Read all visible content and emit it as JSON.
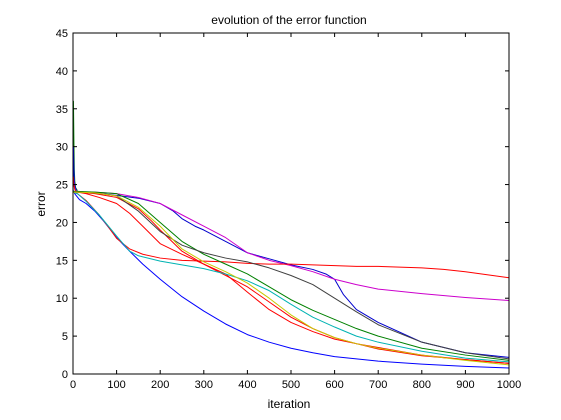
{
  "chart_data": {
    "type": "line",
    "title": "evolution of the error function",
    "xlabel": "iteration",
    "ylabel": "error",
    "xlim": [
      0,
      1000
    ],
    "ylim": [
      0,
      45
    ],
    "xticks": [
      0,
      100,
      200,
      300,
      400,
      500,
      600,
      700,
      800,
      900,
      1000
    ],
    "yticks": [
      0,
      5,
      10,
      15,
      20,
      25,
      30,
      35,
      40,
      45
    ],
    "grid": false,
    "legend": "none",
    "series": [
      {
        "color": "#0000ff",
        "x": [
          0,
          2,
          4,
          8,
          15,
          30,
          50,
          70,
          100,
          130,
          160,
          200,
          250,
          300,
          350,
          400,
          450,
          500,
          550,
          600,
          650,
          700,
          800,
          900,
          1000
        ],
        "y": [
          24.3,
          24,
          23.8,
          23.5,
          23,
          22.5,
          21.5,
          20.2,
          18,
          16.2,
          14.5,
          12.5,
          10.2,
          8.3,
          6.6,
          5.2,
          4.2,
          3.4,
          2.8,
          2.3,
          2.0,
          1.7,
          1.3,
          1.0,
          0.8
        ]
      },
      {
        "color": "#0000cc",
        "x": [
          0,
          2,
          5,
          10,
          30,
          80,
          150,
          200,
          230,
          250,
          280,
          300,
          350,
          400,
          450,
          500,
          550,
          580,
          600,
          620,
          650,
          700,
          800,
          900,
          1000
        ],
        "y": [
          24,
          24.1,
          24.1,
          24.1,
          24,
          23.7,
          23.2,
          22.5,
          21.5,
          20.5,
          19.5,
          19,
          17.5,
          16,
          15.2,
          14.4,
          13.8,
          13.2,
          12.5,
          10.5,
          8.5,
          6.8,
          4.2,
          2.8,
          2.2
        ]
      },
      {
        "color": "#cc00cc",
        "x": [
          0,
          2,
          5,
          10,
          50,
          100,
          150,
          200,
          250,
          300,
          350,
          400,
          450,
          500,
          550,
          600,
          650,
          700,
          800,
          900,
          1000
        ],
        "y": [
          24,
          24.1,
          24,
          24,
          24,
          23.8,
          23.3,
          22.5,
          21,
          19.5,
          18,
          16,
          15,
          14.3,
          13.5,
          12.5,
          11.8,
          11.2,
          10.6,
          10.1,
          9.7
        ]
      },
      {
        "color": "#ff0000",
        "x": [
          0,
          2,
          5,
          10,
          30,
          60,
          80,
          100,
          130,
          160,
          200,
          250,
          300,
          350,
          400,
          450,
          500,
          550,
          600,
          650,
          700,
          800,
          850,
          900,
          950,
          1000
        ],
        "y": [
          24,
          24,
          23.9,
          23.8,
          22.9,
          21,
          19.5,
          17.9,
          16.5,
          15.8,
          15.3,
          15.0,
          14.9,
          14.8,
          14.6,
          14.5,
          14.5,
          14.4,
          14.3,
          14.2,
          14.2,
          14.0,
          13.8,
          13.5,
          13.1,
          12.7
        ]
      },
      {
        "color": "#ff0000",
        "x": [
          0,
          2,
          5,
          10,
          30,
          60,
          100,
          130,
          160,
          200,
          250,
          300,
          350,
          400,
          450,
          500,
          550,
          600,
          650,
          700,
          800,
          900,
          1000
        ],
        "y": [
          24,
          24,
          24,
          24,
          23.8,
          23.3,
          22.5,
          21.2,
          19.5,
          17.2,
          15.8,
          14.5,
          13.2,
          10.8,
          8.5,
          6.8,
          5.6,
          4.6,
          4.0,
          3.5,
          2.5,
          1.9,
          1.4
        ]
      },
      {
        "color": "#ff0000",
        "x": [
          0,
          2,
          5,
          10,
          50,
          100,
          150,
          180,
          200,
          250,
          300,
          350,
          400,
          450,
          500,
          550,
          600,
          650,
          700,
          800,
          900,
          1000
        ],
        "y": [
          24,
          24,
          24,
          24,
          23.8,
          23.3,
          21.8,
          20.2,
          19.0,
          16.2,
          14.5,
          13.0,
          11.5,
          9.5,
          7.5,
          6.0,
          4.8,
          4.0,
          3.3,
          2.4,
          1.9,
          1.4
        ]
      },
      {
        "color": "#00b3b3",
        "x": [
          0,
          2,
          5,
          10,
          30,
          60,
          100,
          130,
          150,
          200,
          250,
          300,
          350,
          400,
          450,
          500,
          550,
          600,
          650,
          700,
          800,
          900,
          1000
        ],
        "y": [
          24,
          24,
          23.9,
          23.8,
          22.8,
          21,
          18.2,
          16.2,
          15.6,
          14.9,
          14.4,
          13.9,
          13.2,
          12.3,
          11,
          9.2,
          7.5,
          6.2,
          5,
          4.2,
          3.0,
          2.1,
          1.6
        ]
      },
      {
        "color": "#008000",
        "x": [
          0,
          2,
          5,
          10,
          50,
          100,
          150,
          200,
          250,
          300,
          350,
          400,
          450,
          500,
          550,
          600,
          650,
          700,
          800,
          900,
          1000
        ],
        "y": [
          24,
          24.1,
          24.1,
          24.1,
          24,
          23.8,
          22.5,
          20.0,
          17.5,
          15.8,
          14.5,
          13.2,
          11.5,
          9.8,
          8.4,
          7.2,
          6.0,
          5.0,
          3.4,
          2.5,
          1.8
        ]
      },
      {
        "color": "#404040",
        "x": [
          0,
          2,
          5,
          10,
          50,
          100,
          150,
          200,
          250,
          300,
          350,
          400,
          450,
          500,
          550,
          600,
          650,
          700,
          800,
          900,
          1000
        ],
        "y": [
          24,
          24,
          24,
          24,
          23.9,
          23.5,
          21.5,
          18.8,
          17.0,
          16.0,
          15.3,
          14.8,
          14.0,
          13.0,
          11.8,
          10.0,
          8.2,
          6.5,
          4.2,
          2.8,
          2.0
        ]
      },
      {
        "color": "#c8c800",
        "x": [
          0,
          2,
          5,
          10,
          50,
          100,
          150,
          200,
          250,
          300,
          350,
          400,
          450,
          500,
          550,
          600,
          650,
          700,
          800,
          900,
          1000
        ],
        "y": [
          24,
          24,
          24,
          24,
          23.9,
          23.5,
          22,
          19.5,
          16.5,
          14.8,
          13.5,
          12.0,
          10.0,
          7.8,
          6.0,
          4.8,
          4.0,
          3.4,
          2.5,
          1.8,
          1.2
        ]
      }
    ],
    "spikes": [
      {
        "color": "#008000",
        "x": [
          0,
          1,
          2,
          3,
          4,
          6,
          10
        ],
        "y": [
          24,
          36,
          31,
          27,
          25.5,
          24.6,
          24.2
        ]
      },
      {
        "color": "#0000ff",
        "x": [
          0,
          1,
          2,
          3,
          5,
          8
        ],
        "y": [
          24,
          30,
          27,
          25.5,
          24.6,
          24.2
        ]
      },
      {
        "color": "#ff0000",
        "x": [
          0,
          1,
          2,
          4,
          7
        ],
        "y": [
          24,
          26,
          25,
          24.4,
          24.1
        ]
      }
    ]
  }
}
